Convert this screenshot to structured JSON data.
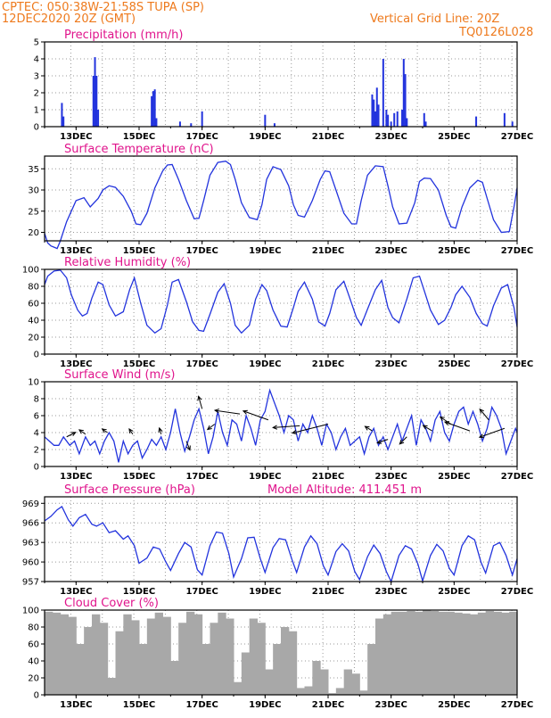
{
  "header": {
    "line1": "CPTEC:  050:38W-21:58S  TUPA (SP)",
    "line2": "12DEC2020 20Z (GMT)",
    "grid_note": "Vertical Grid Line: 20Z",
    "code": "TQ0126L028"
  },
  "x_tick_labels": [
    "13DEC",
    "15DEC",
    "17DEC",
    "19DEC",
    "21DEC",
    "23DEC",
    "25DEC",
    "27DEC"
  ],
  "colors": {
    "line": "#2233dd",
    "bar": "#2233dd",
    "cloud": "#a8a8a8",
    "title": "#e0148c",
    "header": "#ee7a1d"
  },
  "chart_data": [
    {
      "type": "bar",
      "title": "Precipitation (mm/h)",
      "ylim": [
        0,
        5
      ],
      "yticks": [
        0,
        1,
        2,
        3,
        4,
        5
      ],
      "x_unit": "day",
      "xlim": [
        12.0,
        27.0
      ],
      "x": [
        12.55,
        12.6,
        13.55,
        13.6,
        13.65,
        13.7,
        15.4,
        15.45,
        15.5,
        15.55,
        16.3,
        16.65,
        17.0,
        19.0,
        19.3,
        22.4,
        22.45,
        22.5,
        22.55,
        22.6,
        22.75,
        22.85,
        22.9,
        23.0,
        23.1,
        23.2,
        23.35,
        23.4,
        23.45,
        23.5,
        24.05,
        24.1,
        25.7,
        26.6,
        26.85
      ],
      "values": [
        1.4,
        0.6,
        3.0,
        4.1,
        3.0,
        1.0,
        1.8,
        2.1,
        2.2,
        0.5,
        0.3,
        0.2,
        0.9,
        0.7,
        0.2,
        1.9,
        1.6,
        0.9,
        2.3,
        1.3,
        4.0,
        1.0,
        0.7,
        0.3,
        0.8,
        0.9,
        1.0,
        4.0,
        3.1,
        0.5,
        0.8,
        0.3,
        0.6,
        0.8,
        0.3
      ]
    },
    {
      "type": "line",
      "title": "Surface Temperature (nC)",
      "ylim": [
        18,
        38
      ],
      "yticks": [
        20,
        25,
        30,
        35
      ],
      "x_unit": "day",
      "xlim": [
        12.0,
        27.0
      ],
      "x": [
        12.0,
        12.1,
        12.2,
        12.3,
        12.4,
        12.5,
        12.7,
        12.85,
        13.0,
        13.25,
        13.45,
        13.7,
        13.85,
        14.05,
        14.25,
        14.5,
        14.75,
        14.9,
        15.05,
        15.25,
        15.5,
        15.75,
        15.9,
        16.05,
        16.25,
        16.5,
        16.75,
        16.9,
        17.05,
        17.25,
        17.5,
        17.75,
        17.9,
        18.05,
        18.25,
        18.5,
        18.75,
        18.9,
        19.05,
        19.25,
        19.5,
        19.75,
        19.9,
        20.05,
        20.25,
        20.5,
        20.75,
        20.9,
        21.05,
        21.25,
        21.5,
        21.75,
        21.9,
        22.05,
        22.25,
        22.5,
        22.75,
        22.9,
        23.05,
        23.25,
        23.5,
        23.75,
        23.9,
        24.05,
        24.25,
        24.5,
        24.75,
        24.9,
        25.05,
        25.25,
        25.5,
        25.75,
        25.9,
        26.05,
        26.25,
        26.5,
        26.75,
        26.9,
        27.0
      ],
      "values": [
        19.8,
        17.5,
        16.8,
        16.5,
        16.2,
        18,
        22.5,
        25.0,
        27.5,
        28.2,
        26,
        28,
        30.0,
        31.0,
        30.6,
        28.5,
        25,
        22,
        21.8,
        24.5,
        30.5,
        34.5,
        35.9,
        36.0,
        32.5,
        27.5,
        23.2,
        23.3,
        27.5,
        33.5,
        36.5,
        36.8,
        36.0,
        32.5,
        27,
        23.5,
        23.0,
        26.5,
        32.5,
        35.5,
        34.8,
        31.0,
        26.5,
        24.0,
        23.6,
        27.5,
        32.5,
        34.5,
        34.3,
        30.0,
        24.5,
        22.0,
        22.0,
        27.5,
        33.5,
        35.7,
        35.5,
        31.0,
        26.0,
        22.0,
        22.2,
        27.0,
        32.0,
        32.8,
        32.7,
        30.0,
        24.0,
        21.3,
        21.0,
        26.0,
        30.5,
        32.3,
        31.8,
        28.0,
        23.0,
        20.0,
        20.2,
        26.0,
        30.5
      ]
    },
    {
      "type": "line",
      "title": "Relative Humidity (%)",
      "ylim": [
        0,
        100
      ],
      "yticks": [
        0,
        20,
        40,
        60,
        80,
        100
      ],
      "x_unit": "day",
      "xlim": [
        12.0,
        27.0
      ],
      "x": [
        12.0,
        12.1,
        12.3,
        12.5,
        12.7,
        12.85,
        13.05,
        13.2,
        13.35,
        13.5,
        13.7,
        13.85,
        14.05,
        14.25,
        14.5,
        14.7,
        14.85,
        15.05,
        15.25,
        15.5,
        15.7,
        15.9,
        16.05,
        16.25,
        16.5,
        16.7,
        16.9,
        17.05,
        17.25,
        17.5,
        17.7,
        17.9,
        18.05,
        18.25,
        18.5,
        18.7,
        18.9,
        19.05,
        19.25,
        19.5,
        19.7,
        19.9,
        20.05,
        20.25,
        20.5,
        20.7,
        20.9,
        21.05,
        21.25,
        21.5,
        21.7,
        21.9,
        22.05,
        22.25,
        22.5,
        22.7,
        22.9,
        23.05,
        23.25,
        23.5,
        23.7,
        23.9,
        24.05,
        24.25,
        24.5,
        24.7,
        24.9,
        25.05,
        25.25,
        25.5,
        25.7,
        25.9,
        26.05,
        26.25,
        26.5,
        26.7,
        26.9,
        27.0
      ],
      "values": [
        82,
        92,
        98,
        99,
        90,
        70,
        52,
        45,
        48,
        66,
        85,
        82,
        58,
        45,
        50,
        76,
        90,
        60,
        34,
        25,
        30,
        58,
        85,
        88,
        62,
        38,
        28,
        27,
        47,
        73,
        83,
        60,
        34,
        25,
        34,
        65,
        82,
        75,
        52,
        33,
        32,
        55,
        74,
        85,
        65,
        38,
        33,
        48,
        76,
        86,
        65,
        43,
        34,
        53,
        76,
        87,
        55,
        43,
        37,
        65,
        90,
        92,
        75,
        52,
        35,
        40,
        55,
        70,
        80,
        67,
        48,
        36,
        33,
        57,
        78,
        82,
        55,
        32
      ]
    },
    {
      "type": "line",
      "title": "Surface Wind (m/s)",
      "ylim": [
        0,
        10
      ],
      "yticks": [
        0,
        2,
        4,
        6,
        8,
        10
      ],
      "x_unit": "day",
      "xlim": [
        12.0,
        27.0
      ],
      "x": [
        12.0,
        12.15,
        12.3,
        12.45,
        12.6,
        12.8,
        12.95,
        13.1,
        13.3,
        13.45,
        13.6,
        13.75,
        13.9,
        14.05,
        14.2,
        14.35,
        14.5,
        14.65,
        14.8,
        14.95,
        15.1,
        15.25,
        15.4,
        15.55,
        15.7,
        15.85,
        16.0,
        16.15,
        16.3,
        16.45,
        16.6,
        16.75,
        16.9,
        17.05,
        17.2,
        17.35,
        17.5,
        17.65,
        17.8,
        17.95,
        18.1,
        18.25,
        18.4,
        18.55,
        18.7,
        18.85,
        19.0,
        19.15,
        19.3,
        19.45,
        19.6,
        19.75,
        19.9,
        20.05,
        20.2,
        20.35,
        20.5,
        20.65,
        20.8,
        20.95,
        21.1,
        21.25,
        21.4,
        21.55,
        21.7,
        21.85,
        22.0,
        22.15,
        22.3,
        22.45,
        22.6,
        22.75,
        22.9,
        23.05,
        23.2,
        23.35,
        23.5,
        23.65,
        23.8,
        23.95,
        24.1,
        24.25,
        24.4,
        24.55,
        24.7,
        24.85,
        25.0,
        25.15,
        25.3,
        25.45,
        25.6,
        25.75,
        25.9,
        26.05,
        26.2,
        26.35,
        26.5,
        26.65,
        26.8,
        26.95,
        27.0
      ],
      "values": [
        3.5,
        3.0,
        2.5,
        2.5,
        3.5,
        2.5,
        3.0,
        1.5,
        3.5,
        2.5,
        3.0,
        1.5,
        3.0,
        4.0,
        3.0,
        0.5,
        3.0,
        1.5,
        2.5,
        3.0,
        1.0,
        2.0,
        3.2,
        2.5,
        3.5,
        2.0,
        4.0,
        6.8,
        4.0,
        1.8,
        3.5,
        5.5,
        6.8,
        4.5,
        1.5,
        3.5,
        6.5,
        4.0,
        2.5,
        5.5,
        5.0,
        3.0,
        6.0,
        4.5,
        2.5,
        5.5,
        6.5,
        9.0,
        7.5,
        6.0,
        4.0,
        6.0,
        5.5,
        3.0,
        5.0,
        4.0,
        6.0,
        4.5,
        2.5,
        5.0,
        4.0,
        2.0,
        3.5,
        4.5,
        2.5,
        3.0,
        3.5,
        1.5,
        3.5,
        4.5,
        2.5,
        3.5,
        2.0,
        3.5,
        5.0,
        3.0,
        4.5,
        6.0,
        2.5,
        5.5,
        4.5,
        3.0,
        5.5,
        6.5,
        4.0,
        3.0,
        5.0,
        6.5,
        7.0,
        5.0,
        6.5,
        5.0,
        3.0,
        4.5,
        7.0,
        6.0,
        4.5,
        1.5,
        3.0,
        4.5,
        4.0
      ],
      "arrows": [
        {
          "x": 12.7,
          "y": 3.5,
          "dx": 10,
          "dy": -5
        },
        {
          "x": 13.3,
          "y": 3.8,
          "dx": -7,
          "dy": -5
        },
        {
          "x": 14.0,
          "y": 4.0,
          "dx": -6,
          "dy": -4
        },
        {
          "x": 14.8,
          "y": 3.8,
          "dx": -4,
          "dy": -6
        },
        {
          "x": 15.7,
          "y": 3.8,
          "dx": -2,
          "dy": -7
        },
        {
          "x": 16.5,
          "y": 3.0,
          "dx": 4,
          "dy": 10
        },
        {
          "x": 17.0,
          "y": 6.8,
          "dx": -4,
          "dy": -14
        },
        {
          "x": 17.4,
          "y": 5.0,
          "dx": -8,
          "dy": 6
        },
        {
          "x": 18.2,
          "y": 6.2,
          "dx": -28,
          "dy": -4
        },
        {
          "x": 19.1,
          "y": 5.5,
          "dx": -28,
          "dy": -10
        },
        {
          "x": 20.1,
          "y": 4.8,
          "dx": -30,
          "dy": 2
        },
        {
          "x": 21.0,
          "y": 5.0,
          "dx": -40,
          "dy": 10
        },
        {
          "x": 22.4,
          "y": 4.2,
          "dx": -8,
          "dy": -5
        },
        {
          "x": 22.9,
          "y": 3.2,
          "dx": -12,
          "dy": 4
        },
        {
          "x": 23.5,
          "y": 3.5,
          "dx": -8,
          "dy": 8
        },
        {
          "x": 24.3,
          "y": 4.2,
          "dx": -10,
          "dy": -6
        },
        {
          "x": 24.9,
          "y": 5.0,
          "dx": -12,
          "dy": -8
        },
        {
          "x": 25.5,
          "y": 4.2,
          "dx": -28,
          "dy": -10
        },
        {
          "x": 26.1,
          "y": 5.5,
          "dx": -10,
          "dy": -12
        },
        {
          "x": 26.6,
          "y": 4.5,
          "dx": -28,
          "dy": 10
        }
      ]
    },
    {
      "type": "line",
      "title": "Surface Pressure (hPa)",
      "annotation": "Model Altitude: 411.451 m",
      "ylim": [
        957,
        970
      ],
      "yticks": [
        957,
        960,
        963,
        966,
        969
      ],
      "x_unit": "day",
      "xlim": [
        12.0,
        27.0
      ],
      "x": [
        12.0,
        12.2,
        12.4,
        12.55,
        12.75,
        12.9,
        13.1,
        13.3,
        13.5,
        13.65,
        13.85,
        14.05,
        14.25,
        14.5,
        14.65,
        14.85,
        15.0,
        15.25,
        15.45,
        15.65,
        15.85,
        16.0,
        16.25,
        16.45,
        16.65,
        16.85,
        17.0,
        17.25,
        17.45,
        17.65,
        17.85,
        18.0,
        18.25,
        18.45,
        18.65,
        18.85,
        19.0,
        19.25,
        19.45,
        19.65,
        19.85,
        20.0,
        20.25,
        20.45,
        20.65,
        20.85,
        21.0,
        21.25,
        21.45,
        21.65,
        21.85,
        22.0,
        22.25,
        22.45,
        22.65,
        22.85,
        23.0,
        23.25,
        23.45,
        23.65,
        23.85,
        24.0,
        24.25,
        24.45,
        24.65,
        24.85,
        25.0,
        25.25,
        25.45,
        25.65,
        25.85,
        26.0,
        26.25,
        26.45,
        26.65,
        26.85,
        27.0
      ],
      "values": [
        966.3,
        967.0,
        968.0,
        968.5,
        966.5,
        965.5,
        966.8,
        967.3,
        965.8,
        965.5,
        966.0,
        964.5,
        964.8,
        963.5,
        964.0,
        962.5,
        959.8,
        960.6,
        962.3,
        962.0,
        960.0,
        958.7,
        961.3,
        963.0,
        962.3,
        958.8,
        958.0,
        962.5,
        964.6,
        964.4,
        961.3,
        957.7,
        960.5,
        963.7,
        963.8,
        960.5,
        958.4,
        962.2,
        963.6,
        963.4,
        960.4,
        958.4,
        962.3,
        964.0,
        962.8,
        959.4,
        958.0,
        961.6,
        962.8,
        961.7,
        958.5,
        957.3,
        960.8,
        962.6,
        961.3,
        958.5,
        957.0,
        961.0,
        962.5,
        962.0,
        959.7,
        957.1,
        961.0,
        962.7,
        961.7,
        959.0,
        958.0,
        962.5,
        964.0,
        963.4,
        960.0,
        958.3,
        962.5,
        963.0,
        961.0,
        958.0,
        960.5
      ]
    },
    {
      "type": "bar",
      "title": "Cloud Cover (%)",
      "ylim": [
        0,
        100
      ],
      "yticks": [
        0,
        20,
        40,
        60,
        80,
        100
      ],
      "x_unit": "day",
      "xlim": [
        12.0,
        27.0
      ],
      "x": [
        12.0,
        12.25,
        12.5,
        12.75,
        13.0,
        13.25,
        13.5,
        13.75,
        14.0,
        14.25,
        14.5,
        14.75,
        15.0,
        15.25,
        15.5,
        15.75,
        16.0,
        16.25,
        16.5,
        16.75,
        17.0,
        17.25,
        17.5,
        17.75,
        18.0,
        18.25,
        18.5,
        18.75,
        19.0,
        19.25,
        19.5,
        19.75,
        20.0,
        20.25,
        20.5,
        20.75,
        21.0,
        21.25,
        21.5,
        21.75,
        22.0,
        22.25,
        22.5,
        22.75,
        23.0,
        23.25,
        23.5,
        23.75,
        24.0,
        24.25,
        24.5,
        24.75,
        25.0,
        25.25,
        25.5,
        25.75,
        26.0,
        26.25,
        26.5,
        26.75
      ],
      "values": [
        98,
        97,
        95,
        92,
        60,
        80,
        95,
        85,
        20,
        75,
        95,
        88,
        60,
        90,
        97,
        92,
        40,
        85,
        98,
        95,
        60,
        85,
        97,
        90,
        15,
        50,
        90,
        85,
        30,
        60,
        80,
        75,
        8,
        10,
        40,
        30,
        2,
        8,
        30,
        25,
        5,
        60,
        90,
        95,
        98,
        98,
        99,
        98,
        100,
        99,
        98,
        98,
        97,
        96,
        95,
        97,
        99,
        98,
        97,
        98
      ]
    }
  ]
}
